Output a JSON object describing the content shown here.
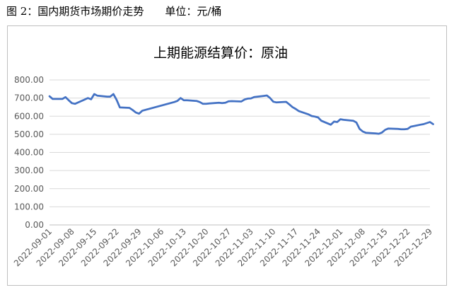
{
  "caption": {
    "figure_label": "图 2：国内期货市场期价走势",
    "unit_label": "单位：元/桶"
  },
  "colors": {
    "line": "#4472c4",
    "grid": "#d9d9d9",
    "axis_text": "#595959"
  },
  "chart_data": {
    "type": "line",
    "title": "上期能源结算价：原油",
    "xlabel": "",
    "ylabel": "",
    "ylim": [
      0,
      800
    ],
    "y_ticks": [
      "0.00",
      "100.00",
      "200.00",
      "300.00",
      "400.00",
      "500.00",
      "600.00",
      "700.00",
      "800.00"
    ],
    "x_ticks": [
      "2022-09-01",
      "2022-09-08",
      "2022-09-15",
      "2022-09-22",
      "2022-09-29",
      "2022-10-06",
      "2022-10-13",
      "2022-10-20",
      "2022-10-27",
      "2022-11-03",
      "2022-11-10",
      "2022-11-17",
      "2022-11-24",
      "2022-12-01",
      "2022-12-08",
      "2022-12-15",
      "2022-12-22",
      "2022-12-29"
    ],
    "grid": true,
    "legend": "none",
    "series": [
      {
        "name": "",
        "points": [
          [
            "2022-09-01",
            710
          ],
          [
            "2022-09-02",
            695
          ],
          [
            "2022-09-05",
            695
          ],
          [
            "2022-09-06",
            705
          ],
          [
            "2022-09-07",
            688
          ],
          [
            "2022-09-08",
            672
          ],
          [
            "2022-09-09",
            668
          ],
          [
            "2022-09-12",
            692
          ],
          [
            "2022-09-13",
            700
          ],
          [
            "2022-09-14",
            693
          ],
          [
            "2022-09-15",
            722
          ],
          [
            "2022-09-16",
            713
          ],
          [
            "2022-09-19",
            708
          ],
          [
            "2022-09-20",
            708
          ],
          [
            "2022-09-21",
            722
          ],
          [
            "2022-09-22",
            690
          ],
          [
            "2022-09-23",
            648
          ],
          [
            "2022-09-26",
            646
          ],
          [
            "2022-09-27",
            634
          ],
          [
            "2022-09-28",
            620
          ],
          [
            "2022-09-29",
            614
          ],
          [
            "2022-09-30",
            630
          ],
          [
            "2022-10-10",
            678
          ],
          [
            "2022-10-11",
            684
          ],
          [
            "2022-10-12",
            700
          ],
          [
            "2022-10-13",
            688
          ],
          [
            "2022-10-14",
            688
          ],
          [
            "2022-10-17",
            684
          ],
          [
            "2022-10-18",
            678
          ],
          [
            "2022-10-19",
            668
          ],
          [
            "2022-10-20",
            668
          ],
          [
            "2022-10-21",
            670
          ],
          [
            "2022-10-24",
            674
          ],
          [
            "2022-10-25",
            672
          ],
          [
            "2022-10-26",
            674
          ],
          [
            "2022-10-27",
            682
          ],
          [
            "2022-10-28",
            683
          ],
          [
            "2022-10-31",
            681
          ],
          [
            "2022-11-01",
            692
          ],
          [
            "2022-11-02",
            697
          ],
          [
            "2022-11-03",
            698
          ],
          [
            "2022-11-04",
            705
          ],
          [
            "2022-11-07",
            712
          ],
          [
            "2022-11-08",
            714
          ],
          [
            "2022-11-09",
            700
          ],
          [
            "2022-11-10",
            680
          ],
          [
            "2022-11-11",
            676
          ],
          [
            "2022-11-14",
            679
          ],
          [
            "2022-11-15",
            665
          ],
          [
            "2022-11-16",
            650
          ],
          [
            "2022-11-17",
            640
          ],
          [
            "2022-11-18",
            628
          ],
          [
            "2022-11-21",
            610
          ],
          [
            "2022-11-22",
            601
          ],
          [
            "2022-11-23",
            598
          ],
          [
            "2022-11-24",
            593
          ],
          [
            "2022-11-25",
            575
          ],
          [
            "2022-11-28",
            553
          ],
          [
            "2022-11-29",
            570
          ],
          [
            "2022-11-30",
            568
          ],
          [
            "2022-12-01",
            583
          ],
          [
            "2022-12-02",
            580
          ],
          [
            "2022-12-05",
            575
          ],
          [
            "2022-12-06",
            565
          ],
          [
            "2022-12-07",
            530
          ],
          [
            "2022-12-08",
            515
          ],
          [
            "2022-12-09",
            508
          ],
          [
            "2022-12-12",
            505
          ],
          [
            "2022-12-13",
            503
          ],
          [
            "2022-12-14",
            510
          ],
          [
            "2022-12-15",
            525
          ],
          [
            "2022-12-16",
            532
          ],
          [
            "2022-12-19",
            530
          ],
          [
            "2022-12-20",
            528
          ],
          [
            "2022-12-21",
            528
          ],
          [
            "2022-12-22",
            530
          ],
          [
            "2022-12-23",
            542
          ],
          [
            "2022-12-26",
            553
          ],
          [
            "2022-12-27",
            556
          ],
          [
            "2022-12-28",
            562
          ],
          [
            "2022-12-29",
            568
          ],
          [
            "2022-12-30",
            556
          ]
        ]
      }
    ]
  }
}
